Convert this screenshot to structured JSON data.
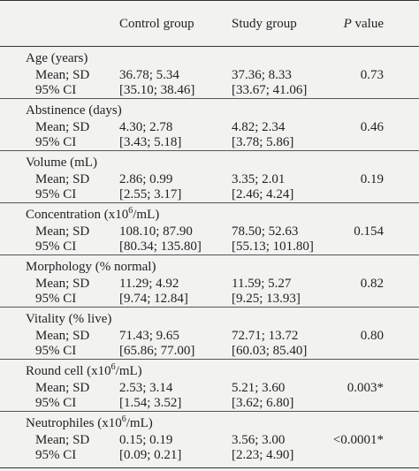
{
  "header": {
    "control": "Control group",
    "study": "Study group",
    "p_label": "P",
    "p_suffix": " value"
  },
  "rows_label": {
    "mean": "Mean; SD",
    "ci": "95% CI"
  },
  "groups": [
    {
      "title": "Age (years)",
      "ctrl_mean": "36.78; 5.34",
      "study_mean": "37.36; 8.33",
      "p": "0.73",
      "ctrl_ci": "[35.10; 38.46]",
      "study_ci": "[33.67; 41.06]"
    },
    {
      "title": "Abstinence (days)",
      "ctrl_mean": "4.30; 2.78",
      "study_mean": "4.82; 2.34",
      "p": "0.46",
      "ctrl_ci": "[3.43; 5.18]",
      "study_ci": "[3.78; 5.86]"
    },
    {
      "title": "Volume (mL)",
      "ctrl_mean": "2.86; 0.99",
      "study_mean": "3.35; 2.01",
      "p": "0.19",
      "ctrl_ci": "[2.55; 3.17]",
      "study_ci": "[2.46; 4.24]"
    },
    {
      "title_pre": "Concentration (x10",
      "title_sup": "6",
      "title_post": "/mL)",
      "ctrl_mean": "108.10; 87.90",
      "study_mean": "78.50; 52.63",
      "p": "0.154",
      "ctrl_ci": "[80.34; 135.80]",
      "study_ci": "[55.13; 101.80]"
    },
    {
      "title": "Morphology (% normal)",
      "ctrl_mean": "11.29; 4.92",
      "study_mean": "11.59; 5.27",
      "p": "0.82",
      "ctrl_ci": "[9.74; 12.84]",
      "study_ci": "[9.25; 13.93]"
    },
    {
      "title": "Vitality (% live)",
      "ctrl_mean": "71.43; 9.65",
      "study_mean": "72.71; 13.72",
      "p": "0.80",
      "ctrl_ci": "[65.86; 77.00]",
      "study_ci": "[60.03; 85.40]"
    },
    {
      "title_pre": "Round cell (x10",
      "title_sup": "6",
      "title_post": "/mL)",
      "ctrl_mean": "2.53; 3.14",
      "study_mean": "5.21; 3.60",
      "p": "0.003*",
      "ctrl_ci": "[1.54; 3.52]",
      "study_ci": "[3.62; 6.80]"
    },
    {
      "title_pre": "Neutrophiles (x10",
      "title_sup": "6",
      "title_post": "/mL)",
      "ctrl_mean": "0.15; 0.19",
      "study_mean": "3.56; 3.00",
      "p": "<0.0001*",
      "ctrl_ci": "[0.09; 0.21]",
      "study_ci": "[2.23; 4.90]"
    }
  ]
}
